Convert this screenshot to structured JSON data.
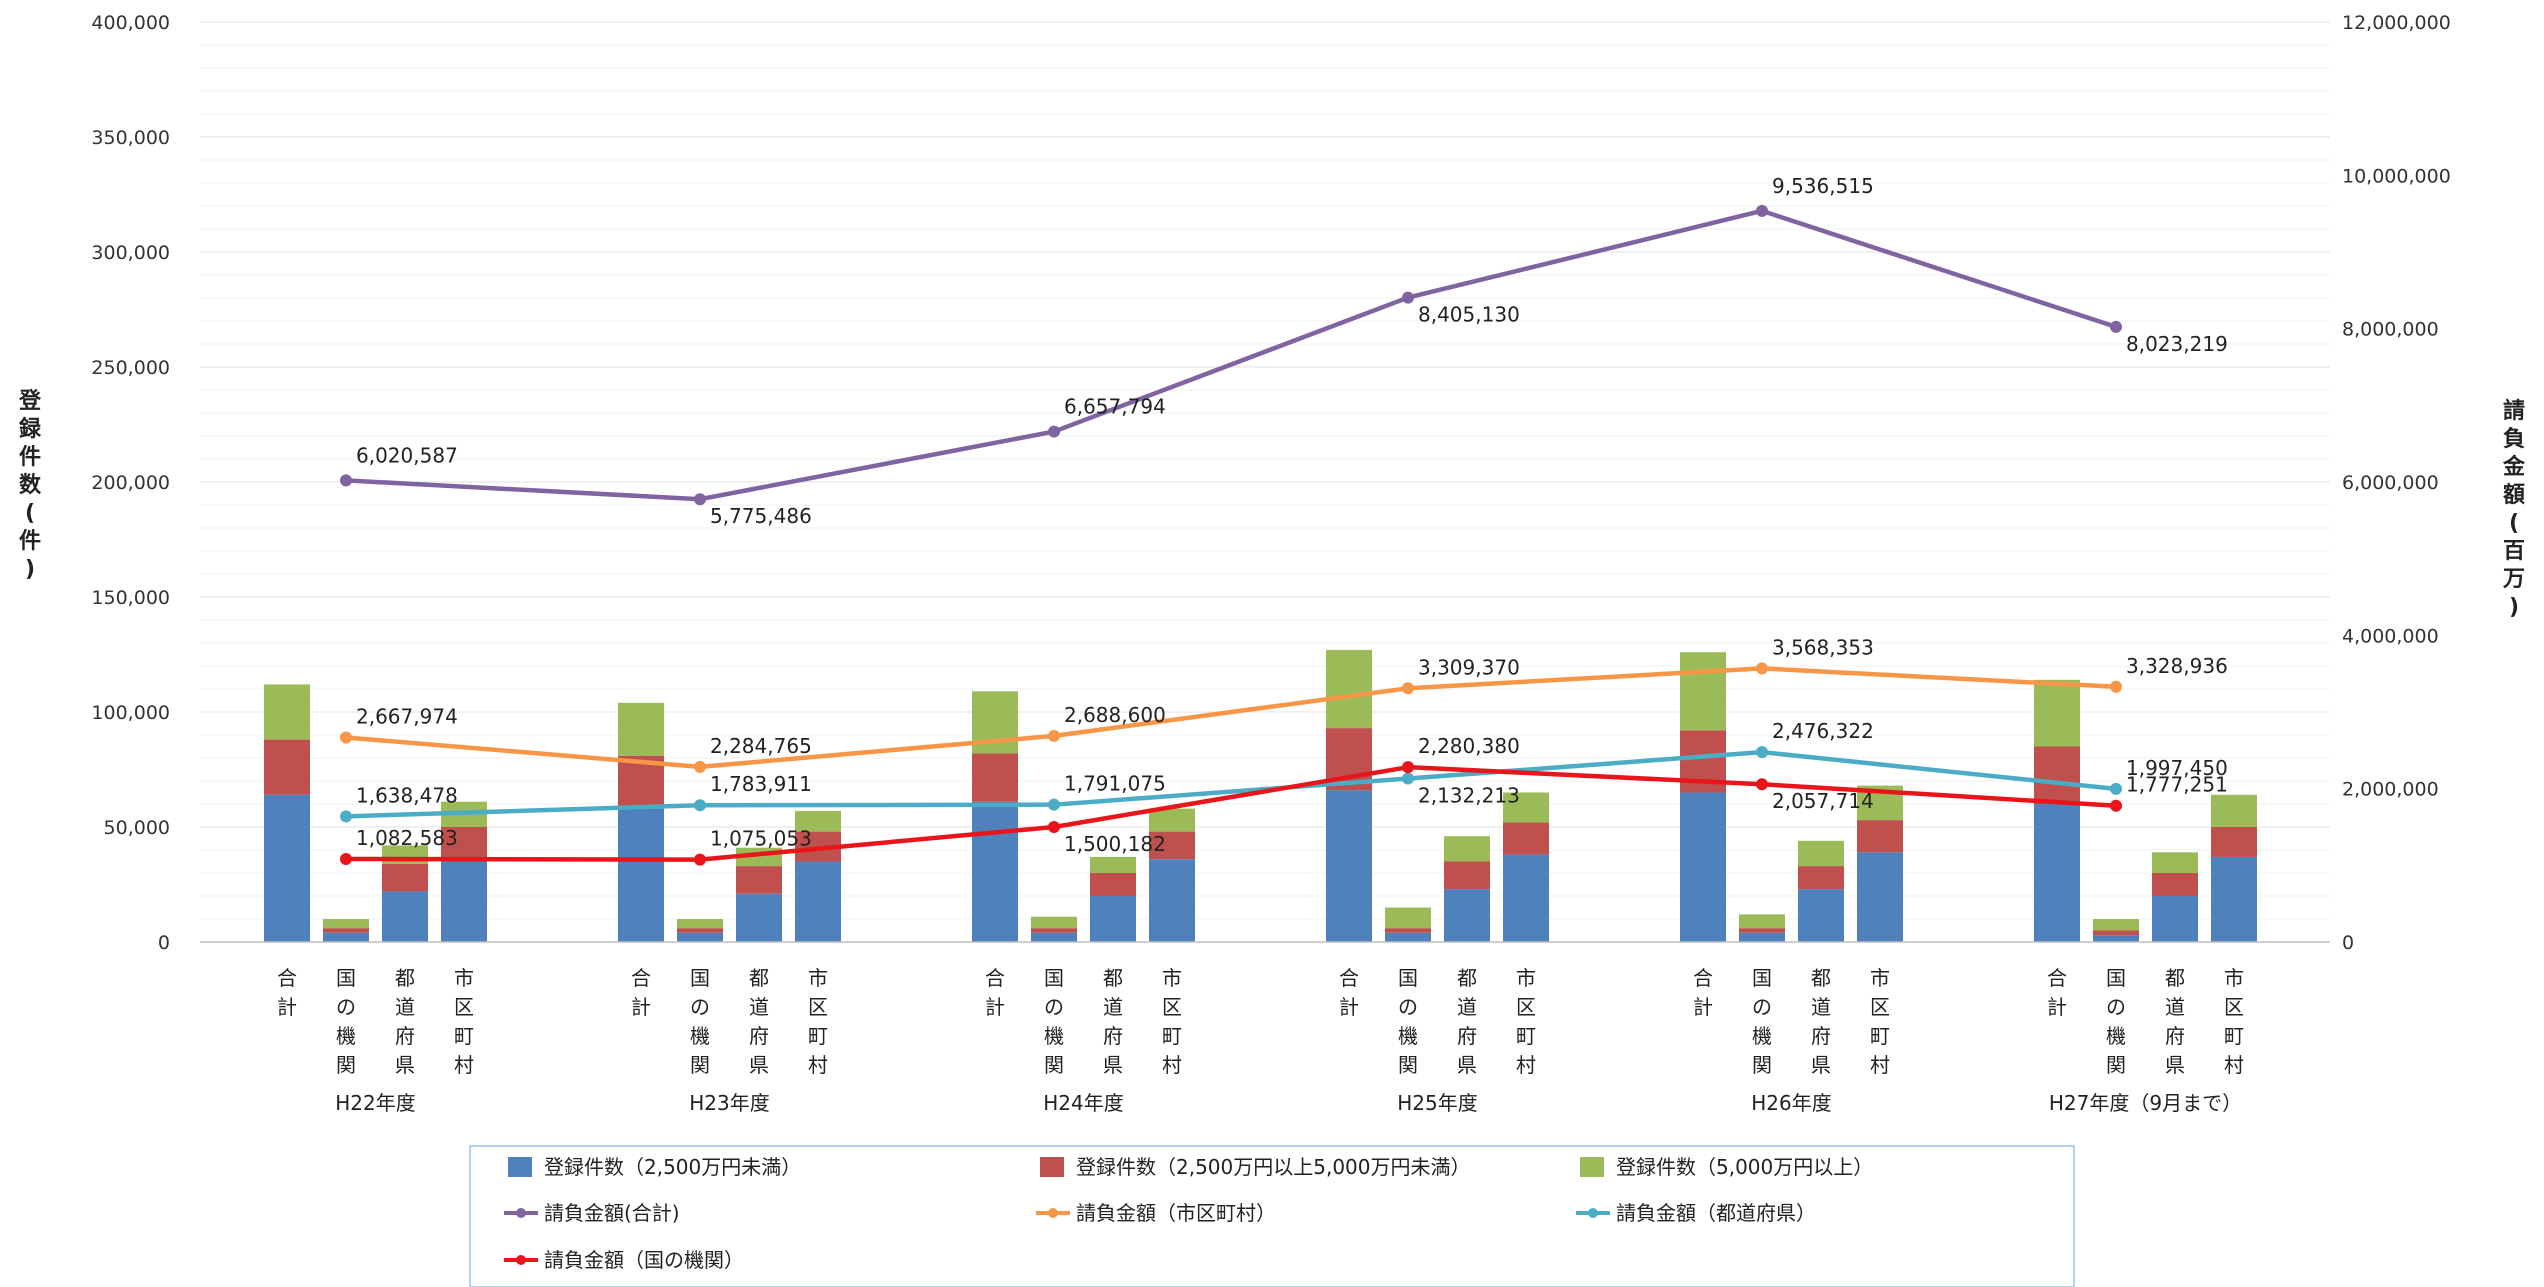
{
  "chart_data": {
    "type": "bar",
    "ylabel_left": "登録件数(件)",
    "ylabel_right": "請負金額(百万)",
    "y_left_ticks": [
      "0",
      "50,000",
      "100,000",
      "150,000",
      "200,000",
      "250,000",
      "300,000",
      "350,000",
      "400,000"
    ],
    "y_right_ticks": [
      "0",
      "2,000,000",
      "4,000,000",
      "6,000,000",
      "8,000,000",
      "10,000,000",
      "12,000,000"
    ],
    "ylim_left": [
      0,
      400000
    ],
    "ylim_right": [
      0,
      12000000
    ],
    "subcategories": [
      "合計",
      "国の機関",
      "都道府県",
      "市区町村"
    ],
    "groups": [
      "H22年度",
      "H23年度",
      "H24年度",
      "H25年度",
      "H26年度",
      "H27年度（9月まで）"
    ],
    "bar_series": [
      {
        "name": "登録件数（2,500万円未満）",
        "color": "#4f81bd",
        "values": [
          [
            64000,
            4000,
            22000,
            35000
          ],
          [
            58000,
            4000,
            21000,
            35000
          ],
          [
            61000,
            4000,
            20000,
            36000
          ],
          [
            66000,
            4000,
            23000,
            38000
          ],
          [
            65000,
            4000,
            23000,
            39000
          ],
          [
            60000,
            3000,
            20000,
            37000
          ]
        ]
      },
      {
        "name": "登録件数（2,500万円以上5,000万円未満）",
        "color": "#c0504d",
        "values": [
          [
            24000,
            2000,
            12000,
            15000
          ],
          [
            23000,
            2000,
            12000,
            13000
          ],
          [
            21000,
            2000,
            10000,
            12000
          ],
          [
            27000,
            2000,
            12000,
            14000
          ],
          [
            27000,
            2000,
            10000,
            14000
          ],
          [
            25000,
            2000,
            10000,
            13000
          ]
        ]
      },
      {
        "name": "登録件数（5,000万円以上）",
        "color": "#9bbb59",
        "values": [
          [
            24000,
            4000,
            8000,
            11000
          ],
          [
            23000,
            4000,
            8000,
            9000
          ],
          [
            27000,
            5000,
            7000,
            10000
          ],
          [
            34000,
            9000,
            11000,
            13000
          ],
          [
            34000,
            6000,
            11000,
            15000
          ],
          [
            29000,
            5000,
            9000,
            14000
          ]
        ]
      }
    ],
    "line_series": [
      {
        "name": "請負金額(合計)",
        "color": "#8064a2",
        "values": [
          6020587,
          5775486,
          6657794,
          8405130,
          9536515,
          8023219
        ],
        "labels": [
          "6,020,587",
          "5,775,486",
          "6,657,794",
          "8,405,130",
          "9,536,515",
          "8,023,219"
        ]
      },
      {
        "name": "請負金額（市区町村）",
        "color": "#f79646",
        "values": [
          2667974,
          2284765,
          2688600,
          3309370,
          3568353,
          3328936
        ],
        "labels": [
          "2,667,974",
          "2,284,765",
          "2,688,600",
          "3,309,370",
          "3,568,353",
          "3,328,936"
        ]
      },
      {
        "name": "請負金額（都道府県）",
        "color": "#4bacc6",
        "values": [
          1638478,
          1783911,
          1791075,
          2132213,
          2476322,
          1997450
        ],
        "labels": [
          "1,638,478",
          "1,783,911",
          "1,791,075",
          "2,132,213",
          "2,476,322",
          "1,997,450"
        ]
      },
      {
        "name": "請負金額（国の機関）",
        "color": "#e8151b",
        "values": [
          1082583,
          1075053,
          1500182,
          2280380,
          2057714,
          1777251
        ],
        "labels": [
          "1,082,583",
          "1,075,053",
          "1,500,182",
          "2,280,380",
          "2,057,714",
          "1,777,251"
        ]
      }
    ],
    "legend_position": "bottom",
    "grid": true
  }
}
